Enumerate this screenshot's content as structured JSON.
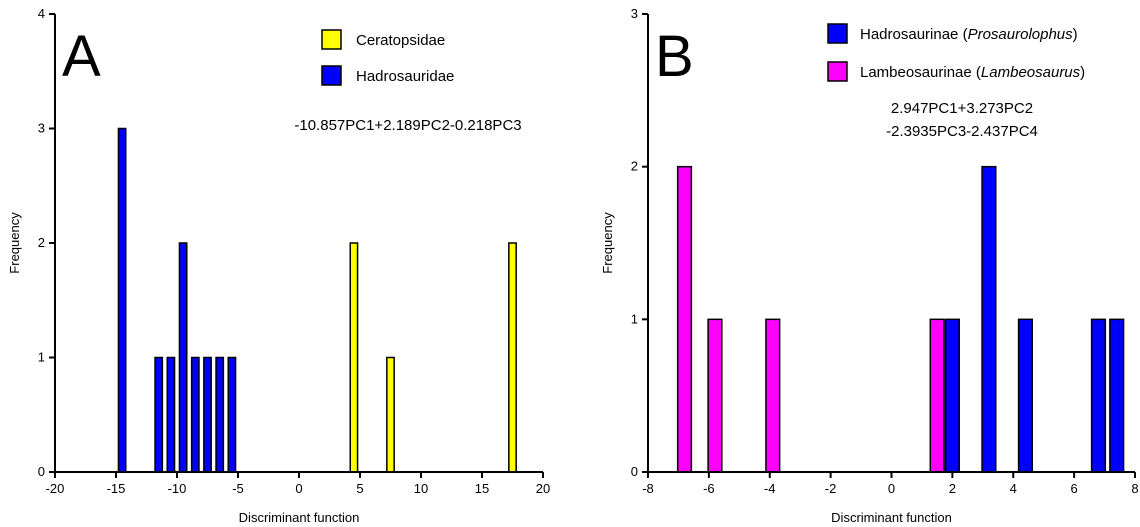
{
  "chart_data": [
    {
      "type": "bar",
      "panel_label": "A",
      "xlabel": "Discriminant function",
      "ylabel": "Frequency",
      "xlim": [
        -20,
        20
      ],
      "ylim": [
        0,
        4
      ],
      "xticks": [
        -20,
        -15,
        -10,
        -5,
        0,
        5,
        10,
        15,
        20
      ],
      "yticks": [
        0,
        1,
        2,
        3,
        4
      ],
      "formula": [
        "-10.857PC1+2.189PC2-0.218PC3"
      ],
      "bar_width": 0.6,
      "grid": false,
      "legend_position": "top-right",
      "series": [
        {
          "name": "Ceratopsidae",
          "color": "#ffff00",
          "x": [
            4.5,
            7.5,
            17.5
          ],
          "values": [
            2,
            1,
            2
          ]
        },
        {
          "name": "Hadrosauridae",
          "color": "#0000ff",
          "x": [
            -14.5,
            -11.5,
            -10.5,
            -9.5,
            -8.5,
            -7.5,
            -6.5,
            -5.5
          ],
          "values": [
            3,
            1,
            1,
            2,
            1,
            1,
            1,
            1
          ]
        }
      ]
    },
    {
      "type": "bar",
      "panel_label": "B",
      "xlabel": "Discriminant function",
      "ylabel": "Frequency",
      "xlim": [
        -8,
        8
      ],
      "ylim": [
        0,
        3
      ],
      "xticks": [
        -8,
        -6,
        -4,
        -2,
        0,
        2,
        4,
        6,
        8
      ],
      "yticks": [
        0,
        1,
        2,
        3
      ],
      "formula": [
        "2.947PC1+3.273PC2",
        "-2.3935PC3-2.437PC4"
      ],
      "bar_width": 0.45,
      "grid": false,
      "legend_position": "top-right",
      "series": [
        {
          "name": "Hadrosaurinae",
          "name_suffix": "Prosaurolophus",
          "color": "#0000ff",
          "x": [
            2.0,
            3.2,
            4.4,
            6.8,
            7.4
          ],
          "values": [
            1,
            2,
            1,
            1,
            1
          ]
        },
        {
          "name": "Lambeosaurinae",
          "name_suffix": "Lambeosaurus",
          "color": "#ff00ff",
          "x": [
            -6.8,
            -5.8,
            -3.9,
            1.5
          ],
          "values": [
            2,
            1,
            1,
            1
          ]
        }
      ]
    }
  ]
}
